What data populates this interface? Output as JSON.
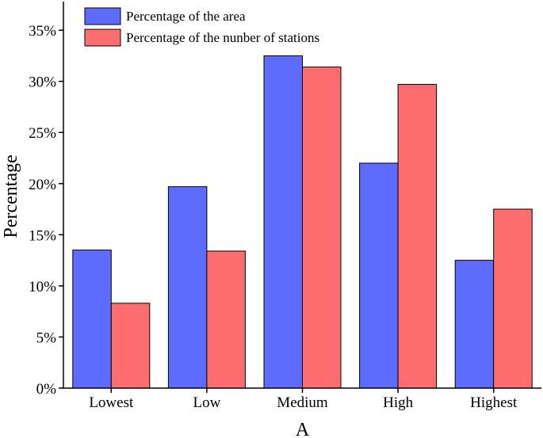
{
  "chart_data": {
    "type": "bar",
    "title": "",
    "xlabel": "A",
    "ylabel": "Percentage",
    "categories": [
      "Lowest",
      "Low",
      "Medium",
      "High",
      "Highest"
    ],
    "series": [
      {
        "name": "Percentage of the area",
        "color": "#5E6BFF",
        "values": [
          13.5,
          19.7,
          32.5,
          22.0,
          12.5
        ]
      },
      {
        "name": "Percentage of the nunber of stations",
        "color": "#FF6E6E",
        "values": [
          8.3,
          13.4,
          31.4,
          29.7,
          17.5
        ]
      }
    ],
    "ylim": [
      0,
      37.8
    ],
    "yticks": [
      0,
      5,
      10,
      15,
      20,
      25,
      30,
      35
    ],
    "ytick_labels": [
      "0%",
      "5%",
      "10%",
      "15%",
      "20%",
      "25%",
      "30%",
      "35%"
    ],
    "grid": false,
    "legend_position": "top-left"
  }
}
